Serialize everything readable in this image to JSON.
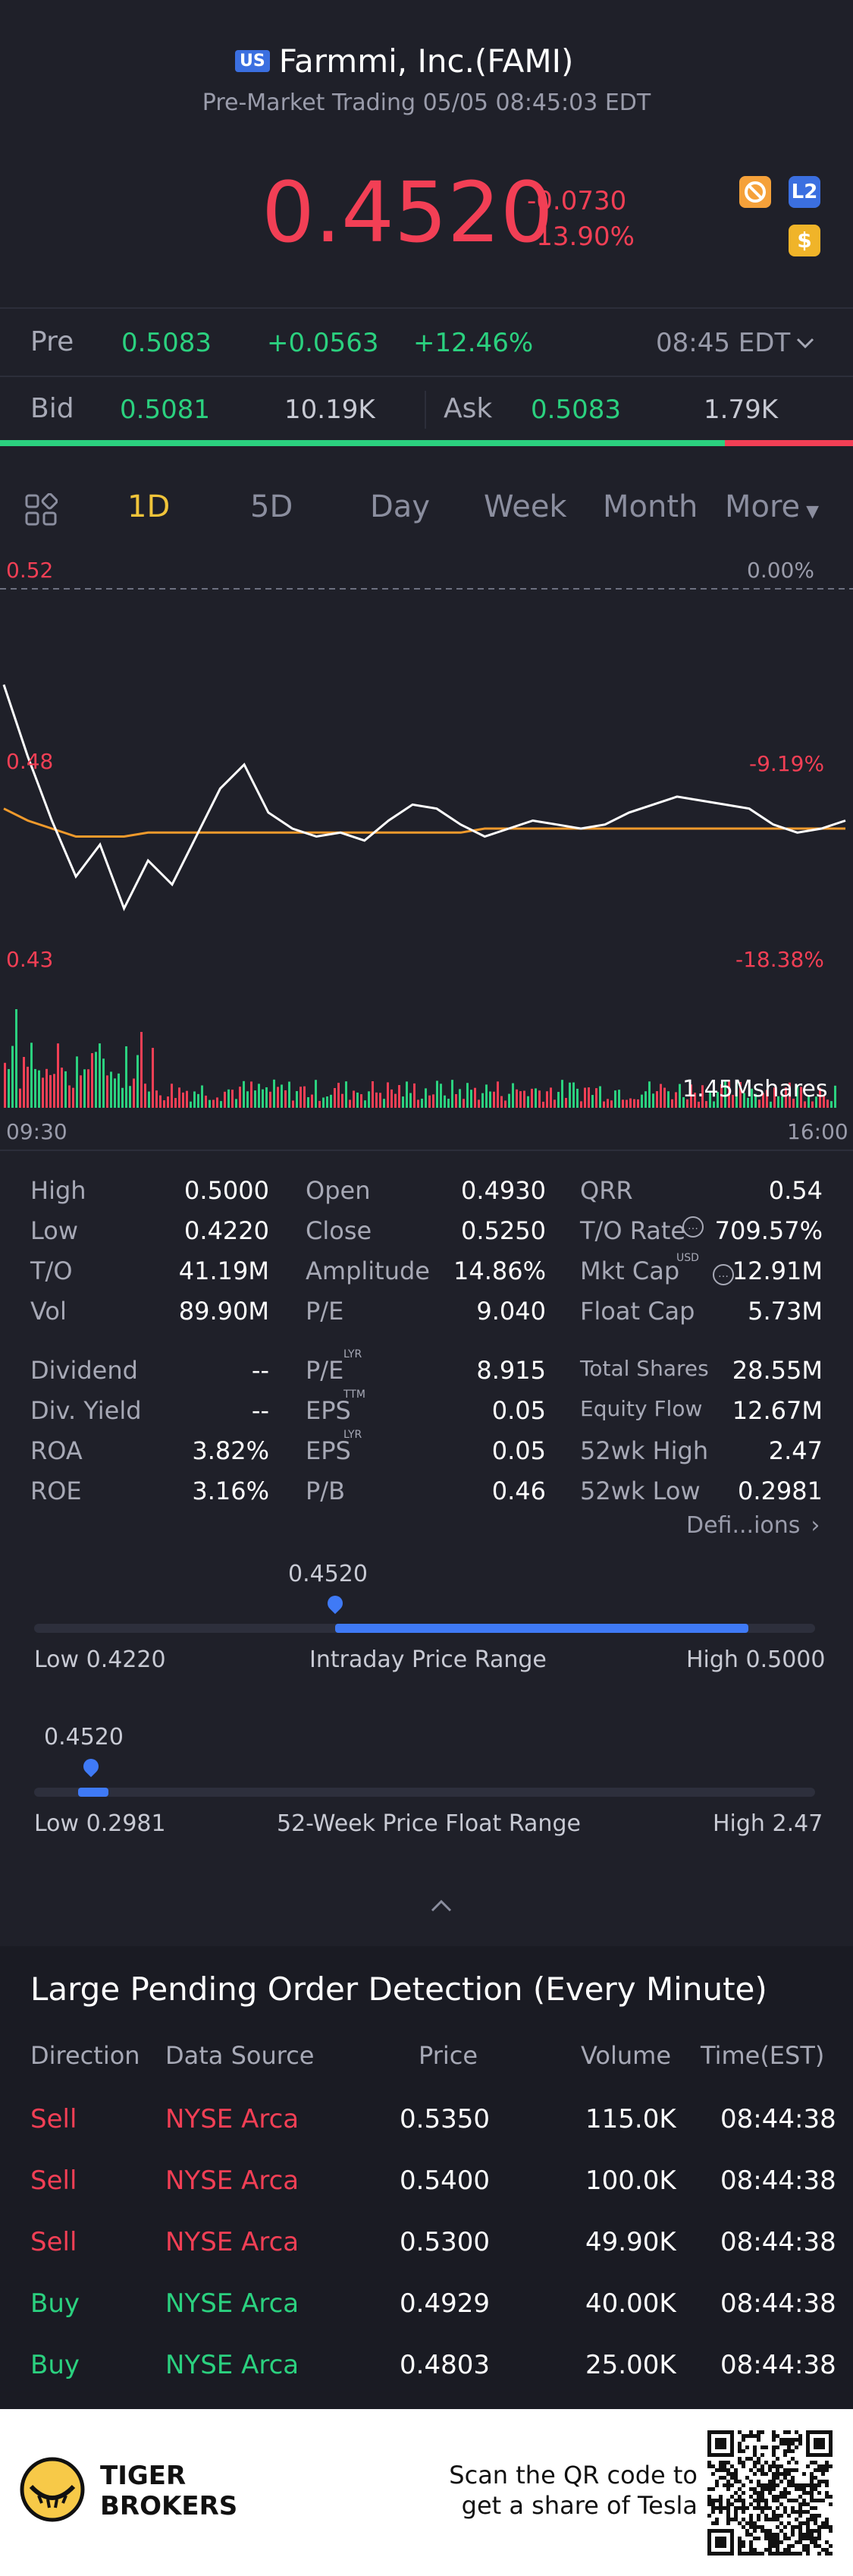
{
  "header": {
    "market_badge": "US",
    "title": "Farmmi, Inc.(FAMI)",
    "subtitle": "Pre-Market Trading 05/05 08:45:03 EDT"
  },
  "quote": {
    "price": "0.4520",
    "change": "-0.0730",
    "change_pct": "-13.90%",
    "badge_l2": "L2",
    "badge_dollar": "$"
  },
  "pre_row": {
    "label": "Pre",
    "price": "0.5083",
    "change": "+0.0563",
    "change_pct": "+12.46%",
    "time": "08:45 EDT"
  },
  "bidask": {
    "bid_label": "Bid",
    "bid_price": "0.5081",
    "bid_size": "10.19K",
    "ask_label": "Ask",
    "ask_price": "0.5083",
    "ask_size": "1.79K",
    "bid_fraction": 0.85
  },
  "tabs": [
    "1D",
    "5D",
    "Day",
    "Week",
    "Month",
    "More"
  ],
  "active_tab": "1D",
  "chart_data": {
    "type": "line",
    "x_labels": [
      "09:30",
      "16:00"
    ],
    "y_left_labels": [
      "0.52",
      "0.48",
      "0.43"
    ],
    "y_right_labels": [
      "0.00%",
      "-9.19%",
      "-18.38%"
    ],
    "ylim": [
      0.43,
      0.52
    ],
    "volume_label": "1.45Mshares",
    "series": [
      {
        "values": [
          0.496,
          0.478,
          0.462,
          0.448,
          0.456,
          0.44,
          0.452,
          0.446,
          0.458,
          0.47,
          0.476,
          0.464,
          0.46,
          0.458,
          0.459,
          0.457,
          0.462,
          0.466,
          0.465,
          0.461,
          0.458,
          0.46,
          0.462,
          0.461,
          0.46,
          0.461,
          0.464,
          0.466,
          0.468,
          0.467,
          0.466,
          0.465,
          0.461,
          0.459,
          0.46,
          0.462
        ]
      },
      {
        "values": [
          0.465,
          0.462,
          0.46,
          0.458,
          0.458,
          0.458,
          0.459,
          0.459,
          0.459,
          0.459,
          0.459,
          0.459,
          0.459,
          0.459,
          0.459,
          0.459,
          0.459,
          0.459,
          0.459,
          0.459,
          0.46,
          0.46,
          0.46,
          0.46,
          0.46,
          0.46,
          0.46,
          0.46,
          0.46,
          0.46,
          0.46,
          0.46,
          0.46,
          0.46,
          0.46,
          0.46
        ]
      }
    ]
  },
  "stats": [
    {
      "label": "High",
      "value": "0.5000"
    },
    {
      "label": "Low",
      "value": "0.4220"
    },
    {
      "label": "T/O",
      "value": "41.19M"
    },
    {
      "label": "Vol",
      "value": "89.90M"
    },
    {
      "label": "Open",
      "value": "0.4930"
    },
    {
      "label": "Close",
      "value": "0.5250"
    },
    {
      "label": "Amplitude",
      "value": "14.86%"
    },
    {
      "label": "P/E",
      "value": "9.040"
    },
    {
      "label": "QRR",
      "value": "0.54"
    },
    {
      "label": "T/O Rate",
      "value": "709.57%"
    },
    {
      "label": "Mkt Cap",
      "value": "12.91M"
    },
    {
      "label": "Float Cap",
      "value": "5.73M"
    }
  ],
  "stats2": [
    {
      "label": "Dividend",
      "value": "--"
    },
    {
      "label": "Div. Yield",
      "value": "--"
    },
    {
      "label": "ROA",
      "value": "3.82%"
    },
    {
      "label": "ROE",
      "value": "3.16%"
    },
    {
      "label": "P/E",
      "sup": "LYR",
      "value": "8.915"
    },
    {
      "label": "EPS",
      "sup": "TTM",
      "value": "0.05"
    },
    {
      "label": "EPS",
      "sup": "LYR",
      "value": "0.05"
    },
    {
      "label": "P/B",
      "value": "0.46"
    },
    {
      "label": "Total Shares",
      "value": "28.55M"
    },
    {
      "label": "Equity Flow",
      "value": "12.67M"
    },
    {
      "label": "52wk High",
      "value": "2.47"
    },
    {
      "label": "52wk Low",
      "value": "0.2981"
    }
  ],
  "mkt_cap_sup": "USD",
  "definitions_link": "Defi...ions",
  "intraday_range": {
    "current": "0.4520",
    "low": "Low 0.4220",
    "high": "High 0.5000",
    "title": "Intraday Price Range",
    "marker_fraction": 0.39
  },
  "week52_range": {
    "current": "0.4520",
    "low": "Low 0.2981",
    "high": "High 2.47",
    "title": "52-Week Price Float Range",
    "marker_fraction": 0.07
  },
  "orders": {
    "title": "Large Pending Order Detection (Every Minute)",
    "headers": [
      "Direction",
      "Data Source",
      "Price",
      "Volume",
      "Time(EST)"
    ],
    "rows": [
      {
        "dir": "Sell",
        "source": "NYSE Arca",
        "price": "0.5350",
        "volume": "115.0K",
        "time": "08:44:38"
      },
      {
        "dir": "Sell",
        "source": "NYSE Arca",
        "price": "0.5400",
        "volume": "100.0K",
        "time": "08:44:38"
      },
      {
        "dir": "Sell",
        "source": "NYSE Arca",
        "price": "0.5300",
        "volume": "49.90K",
        "time": "08:44:38"
      },
      {
        "dir": "Buy",
        "source": "NYSE Arca",
        "price": "0.4929",
        "volume": "40.00K",
        "time": "08:44:38"
      },
      {
        "dir": "Buy",
        "source": "NYSE Arca",
        "price": "0.4803",
        "volume": "25.00K",
        "time": "08:44:38"
      }
    ]
  },
  "footer": {
    "brand_line1": "TIGER",
    "brand_line2": "BROKERS",
    "cta_line1": "Scan the QR code to",
    "cta_line2": "get a share of Tesla"
  },
  "colors": {
    "red": "#f23f55",
    "green": "#2bd17f",
    "accent_blue": "#3f7af6",
    "gold": "#f0c43a"
  }
}
